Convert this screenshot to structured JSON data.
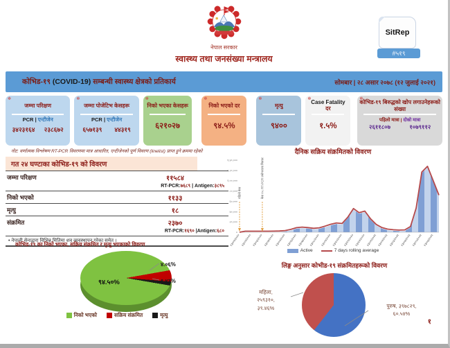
{
  "colors": {
    "accent_blue": "#5b9bd5",
    "maroon": "#8c1d18",
    "purple": "#7030a0",
    "card_lightblue": "#bdd7ee",
    "card_green": "#a9d18e",
    "card_orange": "#f4b183",
    "card_steelblue": "#a8c4dc",
    "card_white": "#f2f2f2",
    "card_grey": "#d9d9d9",
    "pie_green": "#7fc241",
    "pie_red": "#c00000",
    "pie_black": "#1a1a1a",
    "gender_blue": "#4472c4",
    "gender_red": "#c0504d",
    "bar_blue_dark": "#7f9fd4",
    "bar_blue_light": "#c2d3ec",
    "line_red": "#b5494b"
  },
  "header": {
    "govt": "नेपाल सरकार",
    "ministry": "स्वास्थ्य तथा जनसंख्या मन्त्रालय",
    "sitrep_label": "SitRep",
    "sitrep_number": "#५१९"
  },
  "titlebar": {
    "title_1": "कोभिड-१९",
    "title_2": "(COVID-19)",
    "title_3": "सम्बन्धी स्वास्थ्य क्षेत्रको प्रतिकार्य",
    "date": "सोमबार | २८ असार २०७८ (१२ जुलाई २०२१)"
  },
  "stat_cards": [
    {
      "title": "जम्मा परिक्षण",
      "col1": "PCR",
      "sep": "|",
      "col2": "एन्टीजेन",
      "val1": "३४२३१६४",
      "val2": "२३८६७२",
      "bg": "#bdd7ee"
    },
    {
      "title": "जम्मा पोजेटिभ केसहरू",
      "col1": "PCR",
      "sep": "|",
      "col2": "एन्टीजेन",
      "val1": "६५७१३९",
      "val2": "४४३१९",
      "bg": "#bdd7ee"
    },
    {
      "title": "निको भएका केसहरू",
      "value": "६२१०२७",
      "bg": "#a9d18e"
    },
    {
      "title": "निको भएको दर",
      "value": "९४.५%",
      "bg": "#f4b183"
    },
    {
      "title": "मृत्यु",
      "value": "९४००",
      "bg": "#a8c4dc"
    },
    {
      "title_en": "Case Fatality",
      "title_np": "दर",
      "value": "१.५%",
      "bg": "#f2f2f2"
    },
    {
      "title": "कोभिड-१९ बिरुद्धको खोप लगाउनेहरूको संख्या",
      "col1": "पहिलो मात्रा",
      "sep": "|",
      "col2": "दोस्रो मात्रा",
      "val1": "२६११८०७",
      "val2": "१०७९११२",
      "bg": "#d9d9d9"
    }
  ],
  "note": "नोट: वर्णात्मक विश्लेषण RT-PCR विवरणमा मात्र आधारित, एन्टीजेनको पूर्ण विवरण (linelist) प्राप्त हुने क्रममा रहेको",
  "last24": {
    "title": "गत २४ घण्टाका कोभिड-१९ को विवरण",
    "rows": [
      {
        "label": "जम्मा परिक्षण",
        "value": "११५८४",
        "sub": {
          "l1": "RT-PCR:",
          "v1": "७६८९",
          "l2": "| Antigen:",
          "v2": "३८९५"
        }
      },
      {
        "label": "निको भएको",
        "value": "११३३"
      },
      {
        "label": "मृत्यु",
        "value": "१८"
      },
      {
        "label": "संक्रमित",
        "value": "२३७०",
        "sub": {
          "l1": "RT-PCR:",
          "v1": "१६९०",
          "l2": "|Antigen:",
          "v2": "६८०"
        }
      }
    ],
    "footnote": "• नेपाली सेनाद्वारा विभिन्न मितिमा शव व्यवस्थापन गरेका समेत ।"
  },
  "chart_data": [
    {
      "type": "area",
      "title": "दैनिक सक्रिय संक्रमितको विवरण",
      "x_labels": [
        "१३/०१/२०२०",
        "१३/०२/२०२०",
        "१३/०३/२०२०",
        "१३/०४/२०२०",
        "१३/०५/२०२०",
        "१३/०६/२०२०",
        "१३/०७/२०२०",
        "१३/०८/२०२०",
        "१३/०९/२०२०",
        "१३/१०/२०२०",
        "१३/११/२०२०",
        "१३/१२/२०२०",
        "१३/०१/२०२१",
        "१३/०२/२०२१",
        "१३/०३/२०२१",
        "१३/०४/२०२१",
        "१३/०५/२०२१",
        "१३/०६/२०२१"
      ],
      "series": [
        {
          "name": "Active",
          "type": "bar",
          "color": "#7f9fd4",
          "color2": "#c2d3ec",
          "values": [
            0,
            1,
            1,
            2,
            5,
            30,
            120,
            400,
            1200,
            3500,
            6800,
            7900,
            7000,
            5600,
            6600,
            9800,
            13500,
            16000,
            15000,
            27000,
            44000,
            36000,
            39000,
            24000,
            13000,
            7000,
            4000,
            2800,
            2200,
            2600,
            9000,
            45000,
            115000,
            126000,
            98000,
            70000
          ]
        },
        {
          "name": "7 days rolling average",
          "type": "line",
          "color": "#b5494b"
        }
      ],
      "ylim": [
        0,
        140000
      ],
      "y_ticks": [
        0,
        20000,
        40000,
        60000,
        80000,
        100000,
        120000,
        140000
      ],
      "y_tick_labels": [
        "०",
        "२०,०००",
        "४०,०००",
        "६०,०००",
        "८०,०००",
        "१,००,०००",
        "१,२०,०००",
        "१,४०,०००"
      ],
      "annotations": [
        {
          "text": "पहिलो केस",
          "series_index": 0
        },
        {
          "text": "केस १५: RT-PCR प्रयोगशाला विस्तार",
          "series_index": 4
        }
      ],
      "legend": [
        "Active",
        "7 days rolling average"
      ],
      "grid": false,
      "legend_position": "bottom"
    },
    {
      "type": "pie",
      "title": "कोभिड-१९ का निको भएका, सक्रिय संक्रमित र मृत्यु भएकाको विवरण",
      "labels": [
        "निको भएको",
        "सक्रिय संक्रमित",
        "मृत्यु"
      ],
      "values": [
        94.5,
        4.06,
        1.43
      ],
      "unit": "%",
      "value_labels": [
        "९४.५०%",
        "४.०६%",
        "१.४३%"
      ],
      "colors": [
        "#7fc241",
        "#c00000",
        "#1a1a1a"
      ],
      "legend_position": "bottom"
    },
    {
      "type": "pie",
      "title": "लिङ्ग अनुसार कोभीड-१९ संक्रमितहरूको विवरण",
      "labels": [
        "पुरुष",
        "महिला"
      ],
      "values": [
        60.54,
        39.46
      ],
      "counts": [
        397829,
        259310
      ],
      "colors": [
        "#4472c4",
        "#c0504d"
      ],
      "male_lines": [
        "पुरुष, ३९७८२९,",
        "६०.५४%"
      ],
      "female_lines": [
        "महिला,",
        "२५९३१०,",
        "३९.४६%"
      ]
    }
  ],
  "page": {
    "number": "१"
  }
}
